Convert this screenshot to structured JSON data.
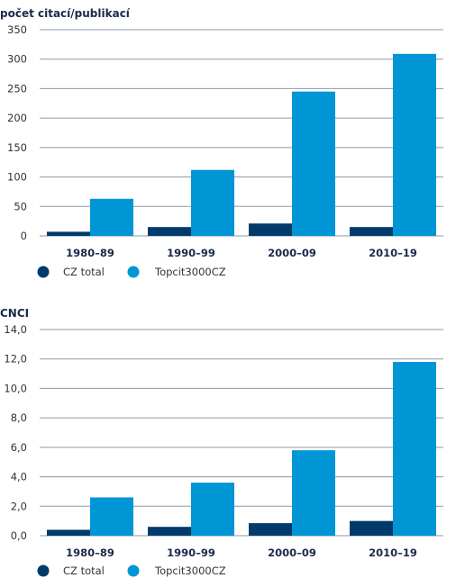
{
  "colors": {
    "cz_total": "#003b6b",
    "topcit": "#0096d6",
    "grid": "#8a9aa8"
  },
  "chart_data": [
    {
      "type": "bar",
      "title": "počet citací/publikací",
      "categories": [
        "1980–89",
        "1990–99",
        "2000–09",
        "2010–19"
      ],
      "series": [
        {
          "name": "CZ total",
          "values": [
            7,
            15,
            21,
            15
          ]
        },
        {
          "name": "Topcit3000CZ",
          "values": [
            63,
            112,
            245,
            309
          ]
        }
      ],
      "ylim": [
        0,
        350
      ],
      "yticks": [
        0,
        50,
        100,
        150,
        200,
        250,
        300,
        350
      ],
      "ytick_labels": [
        "0",
        "50",
        "100",
        "150",
        "200",
        "250",
        "300",
        "350"
      ],
      "grid": true,
      "legend": "bottom-left"
    },
    {
      "type": "bar",
      "title": "CNCI",
      "categories": [
        "1980–89",
        "1990–99",
        "2000–09",
        "2010–19"
      ],
      "series": [
        {
          "name": "CZ total",
          "values": [
            0.4,
            0.6,
            0.85,
            1.0
          ]
        },
        {
          "name": "Topcit3000CZ",
          "values": [
            2.6,
            3.6,
            5.8,
            11.8
          ]
        }
      ],
      "ylim": [
        0,
        14
      ],
      "yticks": [
        0,
        2,
        4,
        6,
        8,
        10,
        12,
        14
      ],
      "ytick_labels": [
        "0,0",
        "2,0",
        "4,0",
        "6,0",
        "8,0",
        "10,0",
        "12,0",
        "14,0"
      ],
      "grid": true,
      "legend": "bottom-left"
    }
  ]
}
